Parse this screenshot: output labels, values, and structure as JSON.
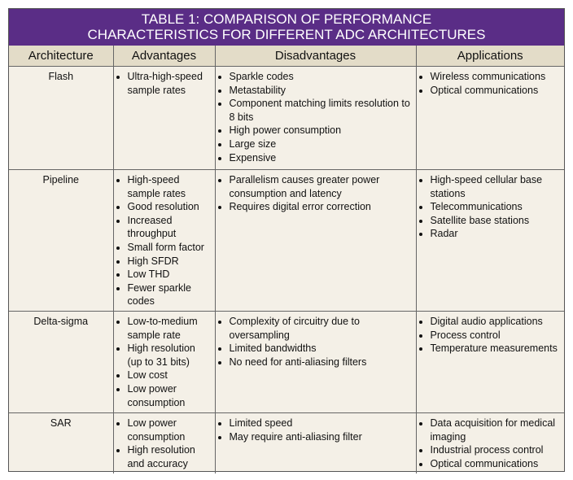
{
  "title": {
    "lines": [
      "TABLE 1: COMPARISON OF PERFORMANCE",
      "CHARACTERISTICS FOR DIFFERENT ADC ARCHITECTURES"
    ]
  },
  "table": {
    "headers": [
      "Architecture",
      "Advantages",
      "Disadvantages",
      "Applications"
    ],
    "rows": [
      {
        "architecture": "Flash",
        "advantages": [
          "Ultra-high-speed sample rates"
        ],
        "disadvantages": [
          "Sparkle codes",
          "Metastability",
          "Component matching limits resolution to 8 bits",
          "High power consumption",
          "Large size",
          "Expensive"
        ],
        "applications": [
          "Wireless communications",
          "Optical communications"
        ]
      },
      {
        "architecture": "Pipeline",
        "advantages": [
          "High-speed sample rates",
          "Good resolution",
          "Increased throughput",
          "Small form factor",
          "High SFDR",
          "Low THD",
          "Fewer sparkle codes"
        ],
        "disadvantages": [
          "Parallelism causes greater power consumption and latency",
          "Requires digital error correction"
        ],
        "applications": [
          "High-speed cellular base stations",
          "Telecommunications",
          "Satellite base stations",
          "Radar"
        ]
      },
      {
        "architecture": "Delta-sigma",
        "advantages": [
          "Low-to-medium sample rate",
          "High resolution (up to 31 bits)",
          "Low cost",
          "Low power consumption"
        ],
        "disadvantages": [
          "Complexity of circuitry due to oversampling",
          "Limited bandwidths",
          "No need for anti-aliasing filters"
        ],
        "applications": [
          "Digital audio applications",
          "Process control",
          "Temperature measurements"
        ]
      },
      {
        "architecture": "SAR",
        "advantages": [
          "Low power consumption",
          "High resolution and accuracy"
        ],
        "disadvantages": [
          "Limited speed",
          "May require anti-aliasing filter"
        ],
        "applications": [
          "Data acquisition for medical imaging",
          "Industrial process control",
          "Optical communications"
        ]
      }
    ]
  }
}
